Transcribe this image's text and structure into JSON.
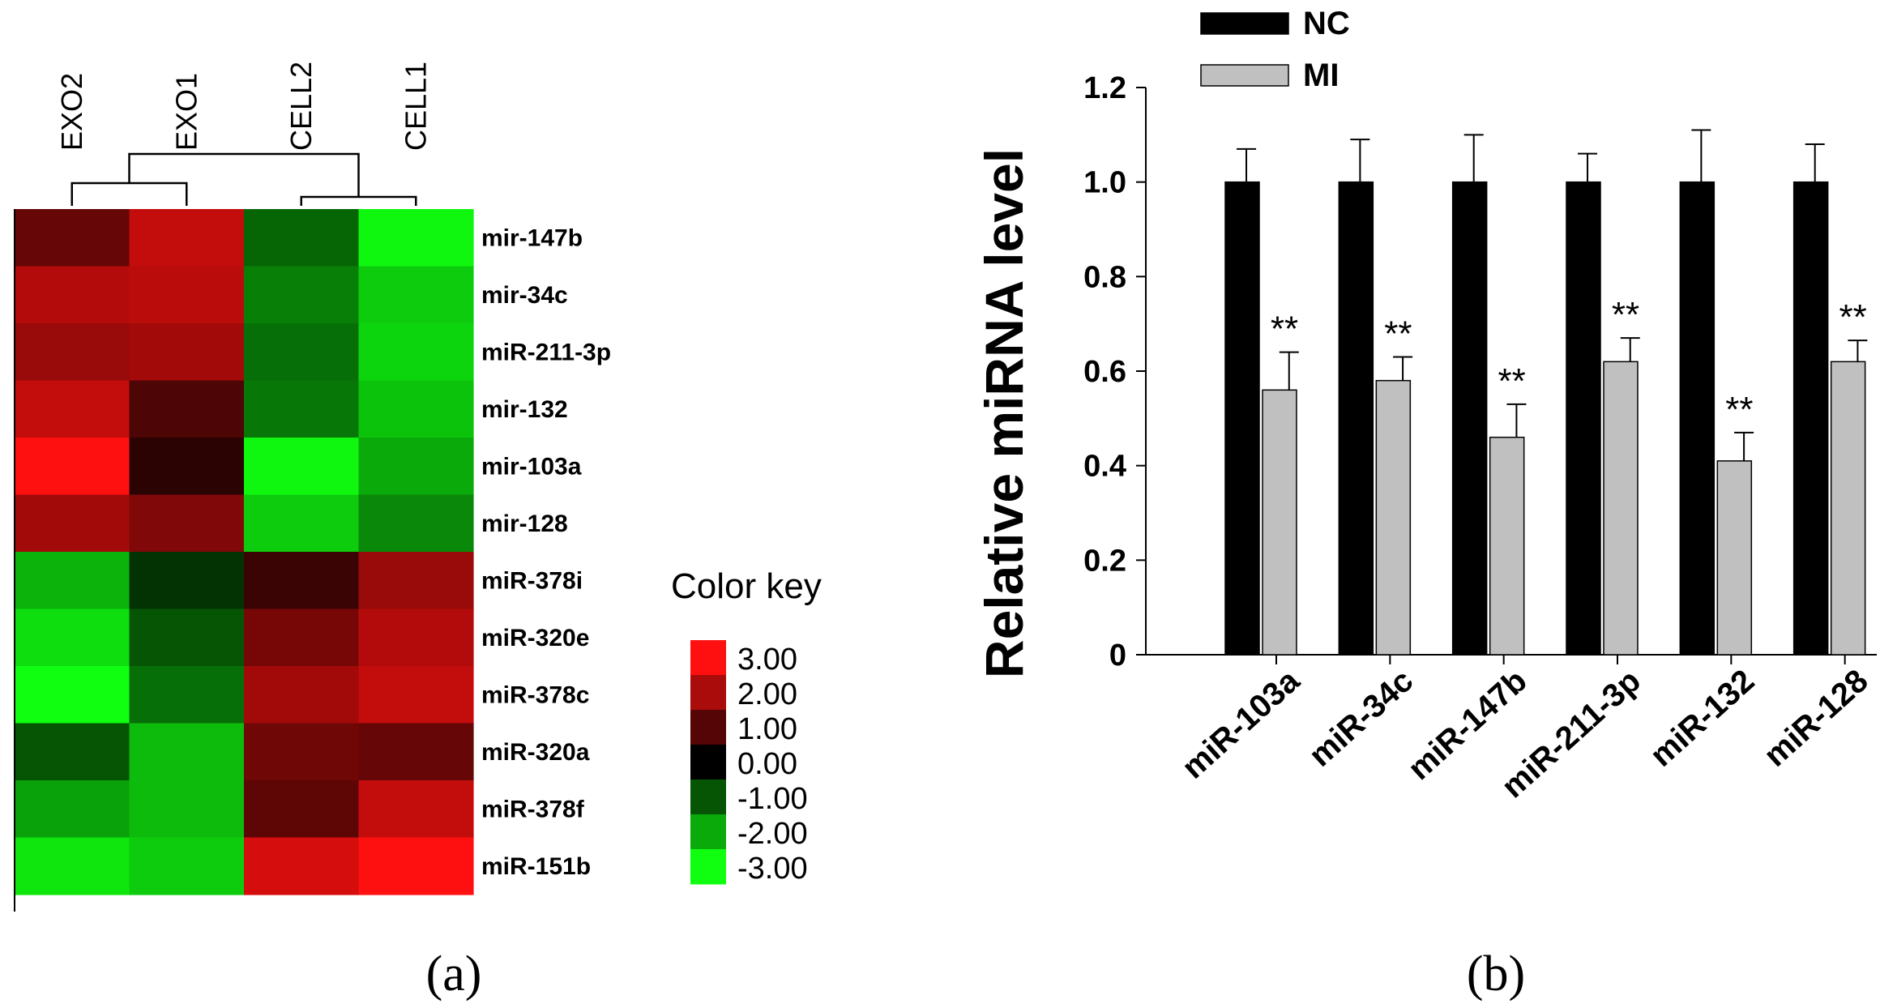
{
  "chart_data": [
    {
      "type": "heatmap",
      "panel_label": "(a)",
      "columns": [
        "EXO2",
        "EXO1",
        "CELL2",
        "CELL1"
      ],
      "rows": [
        "mir-147b",
        "mir-34c",
        "miR-211-3p",
        "mir-132",
        "mir-103a",
        "mir-128",
        "miR-378i",
        "miR-320e",
        "miR-378c",
        "miR-320a",
        "miR-378f",
        "miR-151b"
      ],
      "values": [
        [
          1.2,
          2.3,
          -1.2,
          -2.9
        ],
        [
          2.1,
          2.2,
          -1.5,
          -2.4
        ],
        [
          1.8,
          1.9,
          -1.3,
          -2.5
        ],
        [
          2.3,
          0.9,
          -1.4,
          -2.3
        ],
        [
          3.0,
          0.5,
          -2.9,
          -2.0
        ],
        [
          1.9,
          1.5,
          -2.4,
          -1.6
        ],
        [
          -2.1,
          -0.6,
          0.7,
          1.8
        ],
        [
          -2.6,
          -1.0,
          1.4,
          2.1
        ],
        [
          -3.0,
          -1.3,
          1.9,
          2.3
        ],
        [
          -1.0,
          -2.2,
          1.3,
          1.2
        ],
        [
          -1.9,
          -2.2,
          1.1,
          2.3
        ],
        [
          -2.7,
          -2.4,
          2.5,
          3.0
        ]
      ],
      "color_key": {
        "title": "Color key",
        "ticks": [
          "3.00",
          "2.00",
          "1.00",
          "0.00",
          "-1.00",
          "-2.00",
          "-3.00"
        ],
        "range": [
          -3,
          3
        ],
        "colors": {
          "high": "#ff1010",
          "mid": "#000000",
          "low": "#10ff10"
        }
      },
      "dendrogram": "columns clustered: (EXO2, EXO1), (CELL2, CELL1)"
    },
    {
      "type": "bar",
      "panel_label": "(b)",
      "title": "",
      "xlabel": "",
      "ylabel": "Relative miRNA level",
      "ylim": [
        0,
        1.2
      ],
      "yticks": [
        "0",
        "0.2",
        "0.4",
        "0.6",
        "0.8",
        "1.0",
        "1.2"
      ],
      "categories": [
        "miR-103a",
        "miR-34c",
        "miR-147b",
        "miR-211-3p",
        "miR-132",
        "miR-128"
      ],
      "series": [
        {
          "name": "NC",
          "color": "#000000",
          "values": [
            1.0,
            1.0,
            1.0,
            1.0,
            1.0,
            1.0
          ],
          "errors": [
            0.07,
            0.09,
            0.1,
            0.06,
            0.11,
            0.08
          ]
        },
        {
          "name": "MI",
          "color": "#c0c0c0",
          "values": [
            0.56,
            0.58,
            0.46,
            0.62,
            0.41,
            0.62
          ],
          "errors": [
            0.08,
            0.05,
            0.07,
            0.05,
            0.06,
            0.045
          ]
        }
      ],
      "annotations": [
        "**",
        "**",
        "**",
        "**",
        "**",
        "**"
      ]
    }
  ]
}
